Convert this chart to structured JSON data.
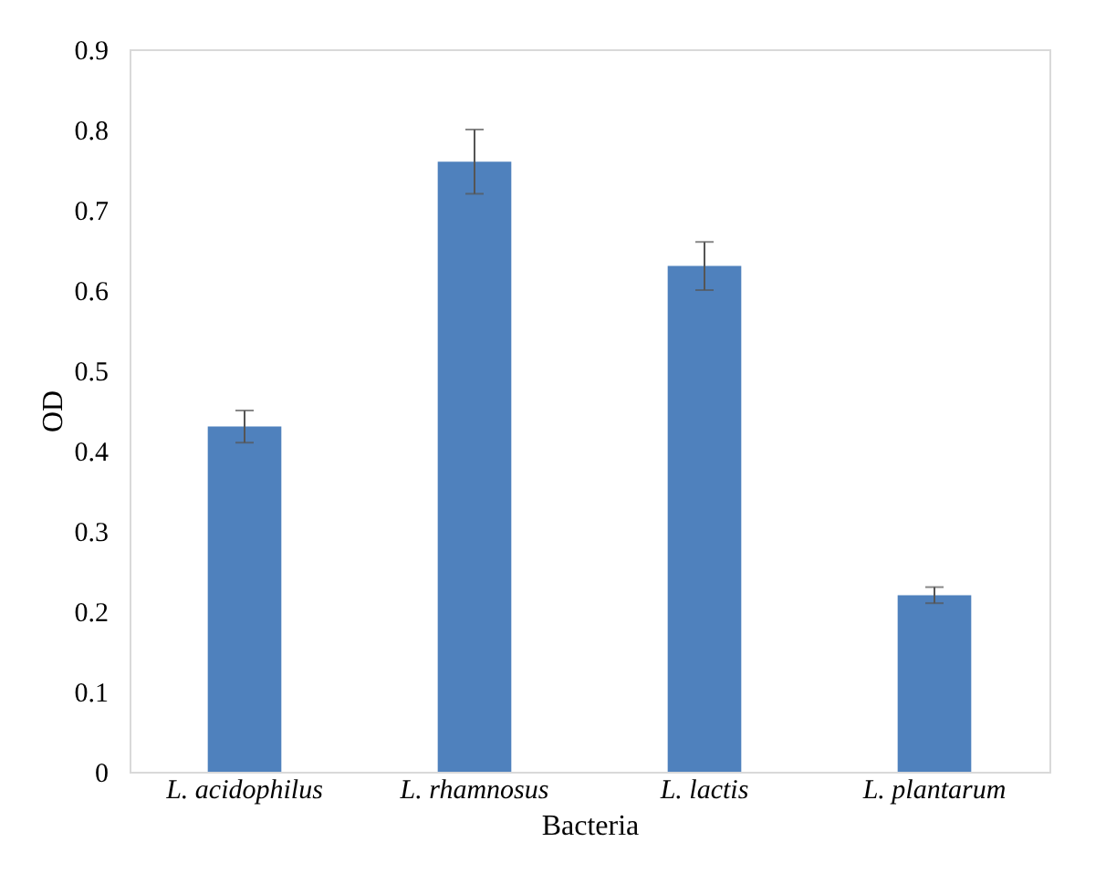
{
  "chart_data": {
    "type": "bar",
    "xlabel": "Bacteria",
    "ylabel": "OD",
    "categories": [
      "L. acidophilus",
      "L. rhamnosus",
      "L. lactis",
      "L. plantarum"
    ],
    "values": [
      0.43,
      0.76,
      0.63,
      0.22
    ],
    "errors": [
      0.02,
      0.04,
      0.03,
      0.01
    ],
    "color": "#4f81bd",
    "ylim": [
      0,
      0.9
    ],
    "yticks": [
      0,
      0.1,
      0.2,
      0.3,
      0.4,
      0.5,
      0.6,
      0.7,
      0.8,
      0.9
    ],
    "grid": false
  }
}
